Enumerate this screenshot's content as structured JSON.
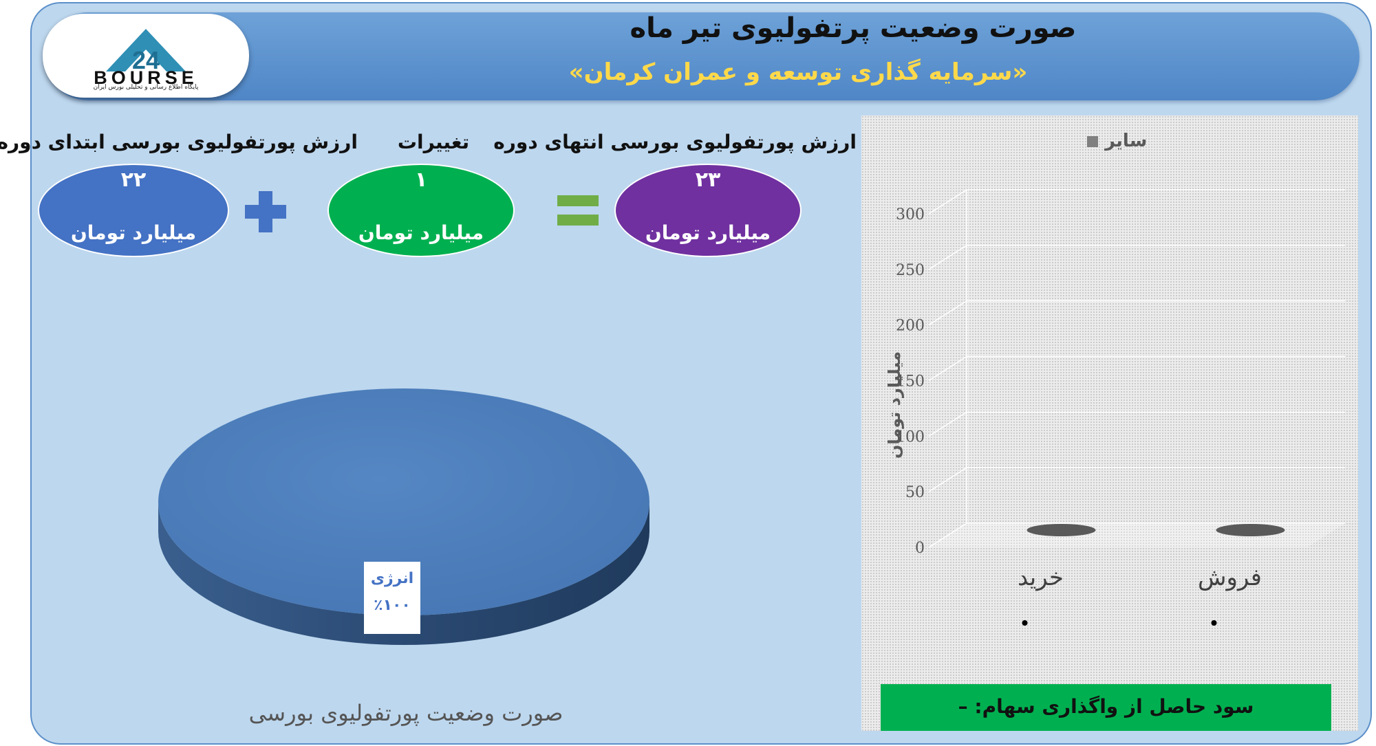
{
  "header": {
    "title": "صورت وضعیت پرتفولیوی تیر ماه",
    "subtitle": "«سرمایه گذاری توسعه و عمران کرمان»"
  },
  "logo": {
    "number": "24",
    "word": "BOURSE",
    "tagline": "پایگاه اطلاع رسانی و تحلیلی بورس ایران"
  },
  "summary": {
    "start": {
      "label": "ارزش پورتفولیوی بورسی ابتدای دوره",
      "value": "۲۲",
      "unit": "میلیارد تومان",
      "color": "#4472c4"
    },
    "change": {
      "label": "تغییرات",
      "value": "۱",
      "unit": "میلیارد تومان",
      "color": "#00b050"
    },
    "end": {
      "label": "ارزش پورتفولیوی بورسی انتهای دوره",
      "value": "۲۳",
      "unit": "میلیارد تومان",
      "color": "#7030a0"
    },
    "plus_color": "#4472c4",
    "equals_color": "#70ad47"
  },
  "chart_data": [
    {
      "type": "pie",
      "title": "صورت وضعیت پورتفولیوی بورسی",
      "slices": [
        {
          "label": "انرژی",
          "value": 100,
          "display": "٪۱۰۰",
          "color": "#4f81bd"
        }
      ]
    },
    {
      "type": "bar",
      "categories": [
        "خرید",
        "فروش"
      ],
      "series": [
        {
          "name": "سایر",
          "values": [
            0,
            0
          ],
          "color": "#7f7f7f"
        }
      ],
      "ylabel": "میلیارد تومان",
      "yticks": [
        "0",
        "50",
        "100",
        "150",
        "200",
        "250",
        "300"
      ],
      "ylim": [
        0,
        300
      ],
      "grid": true,
      "legend": "top"
    }
  ],
  "profit": {
    "text": "سود حاصل از واگذاری سهام: –"
  }
}
